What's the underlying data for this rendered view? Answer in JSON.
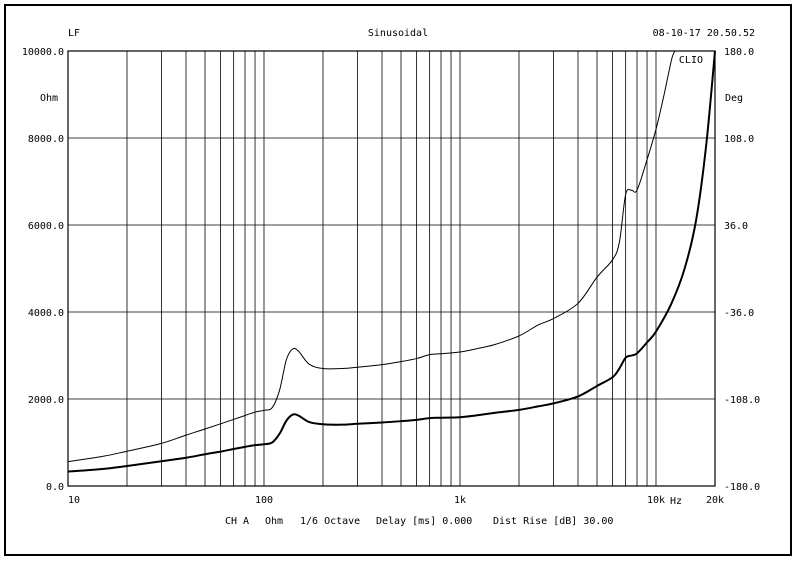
{
  "header": {
    "left": "LF",
    "center": "Sinusoidal",
    "right": "08-10-17 20.50.52",
    "brand": "CLIO"
  },
  "footer": {
    "ch": "CH A",
    "unit": "Ohm",
    "octave": "1/6 Octave",
    "delay": "Delay [ms] 0.000",
    "dist": "Dist Rise [dB] 30.00"
  },
  "chart_data": {
    "type": "line",
    "x_scale": "log",
    "xlim": [
      10,
      20000
    ],
    "ylim": [
      0,
      10000
    ],
    "y2lim": [
      -180,
      180
    ],
    "ylabel": "Ohm",
    "y2label": "Deg",
    "x_ticks": [
      {
        "v": 10,
        "label": "10"
      },
      {
        "v": 100,
        "label": "100"
      },
      {
        "v": 1000,
        "label": "1k"
      },
      {
        "v": 10000,
        "label": "10k"
      },
      {
        "v": 20000,
        "label": "20k"
      }
    ],
    "x_unit": "Hz",
    "y_ticks": [
      {
        "v": 0,
        "label": "0.0"
      },
      {
        "v": 2000,
        "label": "2000.0"
      },
      {
        "v": 4000,
        "label": "4000.0"
      },
      {
        "v": 6000,
        "label": "6000.0"
      },
      {
        "v": 8000,
        "label": "8000.0"
      },
      {
        "v": 10000,
        "label": "10000.0"
      }
    ],
    "y2_ticks": [
      {
        "v": -180,
        "label": "-180.0"
      },
      {
        "v": -108,
        "label": "-108.0"
      },
      {
        "v": -36,
        "label": "-36.0"
      },
      {
        "v": 36,
        "label": "36.0"
      },
      {
        "v": 108,
        "label": "108.0"
      },
      {
        "v": 180,
        "label": "180.0"
      }
    ],
    "series": [
      {
        "stroke_width": 1,
        "points": [
          [
            10,
            560
          ],
          [
            15,
            680
          ],
          [
            20,
            800
          ],
          [
            30,
            980
          ],
          [
            40,
            1170
          ],
          [
            50,
            1310
          ],
          [
            60,
            1430
          ],
          [
            70,
            1530
          ],
          [
            80,
            1620
          ],
          [
            90,
            1700
          ],
          [
            100,
            1740
          ],
          [
            110,
            1800
          ],
          [
            120,
            2200
          ],
          [
            130,
            2900
          ],
          [
            140,
            3150
          ],
          [
            150,
            3100
          ],
          [
            170,
            2800
          ],
          [
            200,
            2700
          ],
          [
            250,
            2700
          ],
          [
            300,
            2730
          ],
          [
            400,
            2790
          ],
          [
            500,
            2860
          ],
          [
            600,
            2930
          ],
          [
            700,
            3020
          ],
          [
            800,
            3040
          ],
          [
            1000,
            3080
          ],
          [
            1200,
            3150
          ],
          [
            1500,
            3250
          ],
          [
            2000,
            3450
          ],
          [
            2500,
            3700
          ],
          [
            3000,
            3850
          ],
          [
            4000,
            4200
          ],
          [
            5000,
            4800
          ],
          [
            6000,
            5200
          ],
          [
            6500,
            5600
          ],
          [
            7000,
            6700
          ],
          [
            7500,
            6800
          ],
          [
            8000,
            6800
          ],
          [
            9000,
            7500
          ],
          [
            10000,
            8200
          ],
          [
            11000,
            9000
          ],
          [
            12000,
            9800
          ],
          [
            12500,
            10000
          ]
        ]
      },
      {
        "stroke_width": 2,
        "points": [
          [
            10,
            330
          ],
          [
            15,
            390
          ],
          [
            20,
            460
          ],
          [
            30,
            570
          ],
          [
            40,
            650
          ],
          [
            50,
            730
          ],
          [
            60,
            790
          ],
          [
            70,
            850
          ],
          [
            80,
            900
          ],
          [
            90,
            940
          ],
          [
            100,
            960
          ],
          [
            110,
            1000
          ],
          [
            120,
            1200
          ],
          [
            130,
            1500
          ],
          [
            140,
            1640
          ],
          [
            150,
            1620
          ],
          [
            170,
            1470
          ],
          [
            200,
            1420
          ],
          [
            250,
            1410
          ],
          [
            300,
            1430
          ],
          [
            400,
            1460
          ],
          [
            500,
            1490
          ],
          [
            600,
            1520
          ],
          [
            700,
            1560
          ],
          [
            800,
            1570
          ],
          [
            1000,
            1580
          ],
          [
            1200,
            1620
          ],
          [
            1500,
            1680
          ],
          [
            2000,
            1750
          ],
          [
            2500,
            1830
          ],
          [
            3000,
            1900
          ],
          [
            4000,
            2060
          ],
          [
            5000,
            2300
          ],
          [
            6000,
            2500
          ],
          [
            6500,
            2700
          ],
          [
            7000,
            2950
          ],
          [
            7500,
            3000
          ],
          [
            8000,
            3050
          ],
          [
            9000,
            3300
          ],
          [
            10000,
            3550
          ],
          [
            12000,
            4200
          ],
          [
            14000,
            5000
          ],
          [
            16000,
            6100
          ],
          [
            18000,
            7800
          ],
          [
            20000,
            10000
          ]
        ]
      }
    ]
  }
}
